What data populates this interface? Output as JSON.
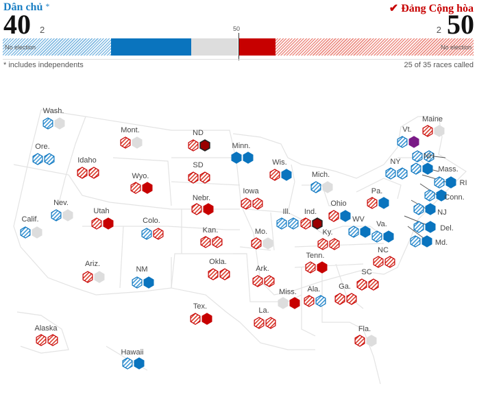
{
  "header": {
    "dem_label": "Dân chủ",
    "dem_star": "*",
    "dem_seats": "40",
    "dem_small": "2",
    "rep_label": "✔ Đảng Cộng hòa",
    "rep_seats": "50",
    "rep_small": "2",
    "majority": "50",
    "no_election_left": "No election",
    "no_election_right": "No election",
    "footnote": "* includes independents",
    "races_called": "25 of 35 races called"
  },
  "colors": {
    "dem": "#0a74be",
    "dem_light": "#62a9dc",
    "rep": "#c70000",
    "rep_light": "#e0533f",
    "undecided": "#dddddd",
    "independent": "#7a1a86"
  },
  "bar": {
    "dem_no_election": 23,
    "dem_won": 17,
    "undecided": 10,
    "rep_won": 8,
    "rep_no_election": 42
  },
  "states": [
    {
      "name": "Wash.",
      "hex": [
        "dh",
        "g"
      ]
    },
    {
      "name": "Ore.",
      "hex": [
        "dh",
        "dh"
      ]
    },
    {
      "name": "Calif.",
      "hex": [
        "dh",
        "g"
      ]
    },
    {
      "name": "Nev.",
      "hex": [
        "dh",
        "g"
      ]
    },
    {
      "name": "Idaho",
      "hex": [
        "rh",
        "rh"
      ]
    },
    {
      "name": "Mont.",
      "hex": [
        "rh",
        "g"
      ]
    },
    {
      "name": "Wyo.",
      "hex": [
        "rh",
        "r"
      ]
    },
    {
      "name": "Utah",
      "hex": [
        "rh",
        "r"
      ]
    },
    {
      "name": "Colo.",
      "hex": [
        "dh",
        "rh"
      ]
    },
    {
      "name": "Ariz.",
      "hex": [
        "rh",
        "g"
      ]
    },
    {
      "name": "NM",
      "hex": [
        "dh",
        "d"
      ]
    },
    {
      "name": "ND",
      "hex": [
        "rh",
        "rd"
      ]
    },
    {
      "name": "SD",
      "hex": [
        "rh",
        "rh"
      ]
    },
    {
      "name": "Nebr.",
      "hex": [
        "rh",
        "r"
      ]
    },
    {
      "name": "Kan.",
      "hex": [
        "rh",
        "rh"
      ]
    },
    {
      "name": "Okla.",
      "hex": [
        "rh",
        "rh"
      ]
    },
    {
      "name": "Tex.",
      "hex": [
        "rh",
        "r"
      ]
    },
    {
      "name": "Minn.",
      "hex": [
        "d",
        "d"
      ]
    },
    {
      "name": "Iowa",
      "hex": [
        "rh",
        "rh"
      ]
    },
    {
      "name": "Mo.",
      "hex": [
        "rh",
        "g"
      ]
    },
    {
      "name": "Ark.",
      "hex": [
        "rh",
        "rh"
      ]
    },
    {
      "name": "La.",
      "hex": [
        "rh",
        "rh"
      ]
    },
    {
      "name": "Wis.",
      "hex": [
        "rh",
        "d"
      ]
    },
    {
      "name": "Ill.",
      "hex": [
        "dh",
        "dh"
      ]
    },
    {
      "name": "Mich.",
      "hex": [
        "dh",
        "g"
      ]
    },
    {
      "name": "Ind.",
      "hex": [
        "rh",
        "rd"
      ]
    },
    {
      "name": "Ohio",
      "hex": [
        "rh",
        "d"
      ]
    },
    {
      "name": "Ky.",
      "hex": [
        "rh",
        "rh"
      ]
    },
    {
      "name": "Tenn.",
      "hex": [
        "rh",
        "r"
      ]
    },
    {
      "name": "Miss.",
      "hex": [
        "g",
        "r"
      ]
    },
    {
      "name": "Ala.",
      "hex": [
        "rh",
        "dh"
      ]
    },
    {
      "name": "Ga.",
      "hex": [
        "rh",
        "rh"
      ]
    },
    {
      "name": "Fla.",
      "hex": [
        "rh",
        "g"
      ]
    },
    {
      "name": "SC",
      "hex": [
        "rh",
        "rh"
      ]
    },
    {
      "name": "NC",
      "hex": [
        "rh",
        "rh"
      ]
    },
    {
      "name": "Va.",
      "hex": [
        "dh",
        "d"
      ]
    },
    {
      "name": "WV",
      "hex": [
        "dh",
        "d"
      ]
    },
    {
      "name": "Pa.",
      "hex": [
        "rh",
        "d"
      ]
    },
    {
      "name": "NY",
      "hex": [
        "dh",
        "dh"
      ]
    },
    {
      "name": "Vt.",
      "hex": [
        "dh",
        "i"
      ]
    },
    {
      "name": "Maine",
      "hex": [
        "rh",
        "g"
      ]
    },
    {
      "name": "NH",
      "hex": [
        "dh",
        "dh"
      ]
    },
    {
      "name": "Mass.",
      "hex": [
        "dh",
        "d"
      ]
    },
    {
      "name": "RI",
      "hex": [
        "dh",
        "d"
      ]
    },
    {
      "name": "Conn.",
      "hex": [
        "dh",
        "d"
      ]
    },
    {
      "name": "NJ",
      "hex": [
        "dh",
        "d"
      ]
    },
    {
      "name": "Del.",
      "hex": [
        "dh",
        "d"
      ]
    },
    {
      "name": "Md.",
      "hex": [
        "dh",
        "d"
      ]
    },
    {
      "name": "Alaska",
      "hex": [
        "rh",
        "rh"
      ]
    },
    {
      "name": "Hawaii",
      "hex": [
        "dh",
        "d"
      ]
    }
  ]
}
